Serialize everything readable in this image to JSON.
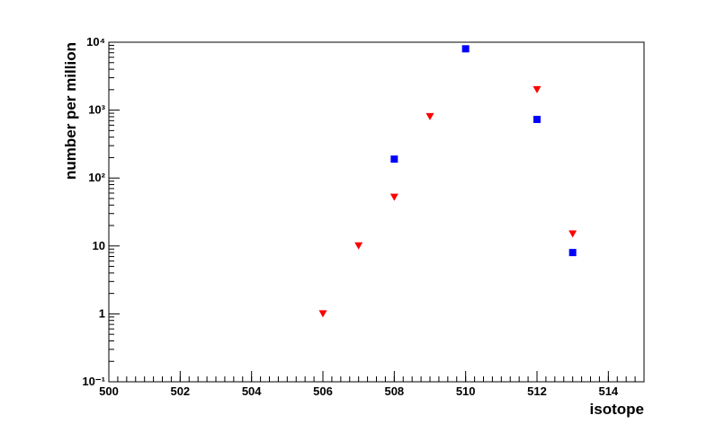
{
  "chart_data": {
    "type": "scatter",
    "x_label": "isotope",
    "y_label": "number per million",
    "xlim": [
      500,
      515
    ],
    "xticks": [
      500,
      502,
      504,
      506,
      508,
      510,
      512,
      514
    ],
    "ylim": [
      0.1,
      10000
    ],
    "log_y": true,
    "yticks": [
      {
        "value": 0.1,
        "label": "10⁻¹"
      },
      1,
      10,
      {
        "value": 100,
        "label": "10²"
      },
      {
        "value": 1000,
        "label": "10³"
      },
      {
        "value": 10000,
        "label": "10⁴"
      }
    ],
    "series": [
      {
        "color": "#0000ff",
        "marker": "square",
        "x": [
          508,
          510,
          512,
          513
        ],
        "values": [
          190,
          8000,
          730,
          8
        ]
      },
      {
        "color": "#ff0000",
        "marker": "triangle-down",
        "x": [
          506,
          507,
          508,
          509,
          512,
          513
        ],
        "values": [
          1,
          10,
          52,
          800,
          2000,
          15
        ]
      }
    ]
  }
}
